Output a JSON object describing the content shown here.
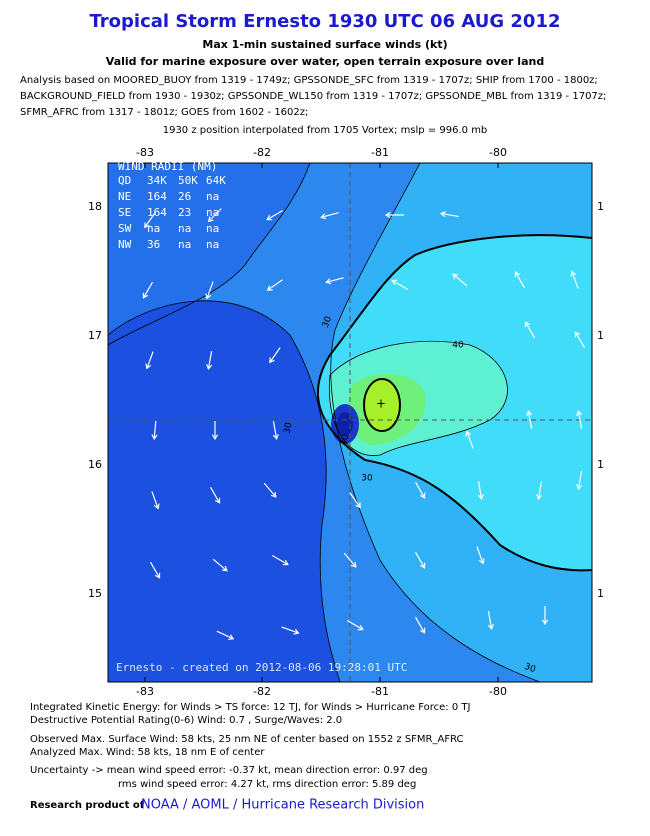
{
  "header": {
    "title": "Tropical Storm Ernesto 1930 UTC 06 AUG 2012",
    "subtitle": "Max 1-min sustained surface winds (kt)",
    "subtitle2": "Valid for marine exposure over water, open terrain exposure over land",
    "analysis_lines": [
      "Analysis based on MOORED_BUOY from 1319 - 1749z; GPSSONDE_SFC from 1319 - 1707z; SHIP from 1700 - 1800z;",
      "BACKGROUND_FIELD from 1930 - 1930z; GPSSONDE_WL150 from 1319 - 1707z; GPSSONDE_MBL from 1319 - 1707z;",
      "SFMR_AFRC from 1317 - 1801z; GOES from 1602 - 1602z;"
    ],
    "position_line": "1930 z position interpolated from 1705 Vortex; mslp = 996.0 mb"
  },
  "map": {
    "top_ticks": [
      "-83",
      "-82",
      "-81",
      "-80"
    ],
    "bottom_ticks": [
      "-83",
      "-82",
      "-81",
      "-80"
    ],
    "left_ticks": [
      "18",
      "17",
      "16",
      "15"
    ],
    "right_ticks": [
      "1",
      "1",
      "1",
      "1"
    ],
    "wind_radii": {
      "title": "WIND RADII (NM)",
      "header": [
        "QD",
        "34K",
        "50K",
        "64K"
      ],
      "rows": [
        [
          "NE",
          "164",
          "26",
          "na"
        ],
        [
          "SE",
          "164",
          "23",
          "na"
        ],
        [
          "SW",
          "na",
          "na",
          "na"
        ],
        [
          "NW",
          "36",
          "na",
          "na"
        ]
      ]
    },
    "contour_labels": [
      "30",
      "40",
      "30",
      "30",
      "40",
      "30"
    ],
    "credit": "Ernesto - created on 2012-08-06 19:28:01 UTC"
  },
  "footer": {
    "lines": [
      "Integrated Kinetic Energy: for Winds > TS force: 12 TJ, for Winds > Hurricane Force: 0 TJ",
      "Destructive Potential Rating(0-6)  Wind: 0.7 , Surge/Waves: 2.0",
      "Observed Max. Surface Wind: 58 kts, 25 nm NE of center based on 1552 z SFMR_AFRC",
      "Analyzed Max. Wind: 58 kts, 18 nm  E of center",
      "Uncertainty -> mean wind speed error:  -0.37 kt, mean direction error: 0.97 deg",
      "rms wind speed error: 4.27 kt, rms direction error: 5.89 deg"
    ],
    "research_prefix": "Research product of",
    "research_org": "NOAA / AOML / Hurricane Research Division"
  }
}
